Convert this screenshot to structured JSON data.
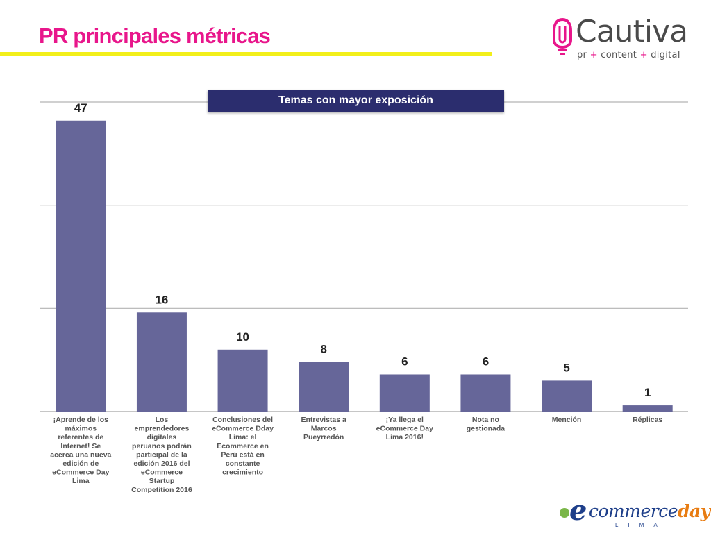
{
  "header": {
    "title": "PR principales métricas"
  },
  "logos": {
    "cautiva_name": "Cautiva",
    "cautiva_tag_pr": "pr",
    "cautiva_tag_plus": "+",
    "cautiva_tag_content": "content",
    "cautiva_tag_digital": "digital",
    "ecommerce_e": "e",
    "ecommerce_commerce": "commerce",
    "ecommerce_day": "day",
    "ecommerce_lima": "LIMA"
  },
  "colors": {
    "title": "#e8168b",
    "underline": "#f2ef1a",
    "bar": "#666699",
    "banner": "#2b2d6e",
    "grid": "#b3b3b3"
  },
  "chart_data": {
    "type": "bar",
    "title": "Temas con mayor exposición",
    "ylim": [
      0,
      50
    ],
    "grid": true,
    "categories": [
      "¡Aprende de los máximos referentes de Internet! Se acerca una nueva edición de eCommerce Day Lima",
      "Los emprendedores digitales peruanos podrán participal de la edición 2016 del eCommerce Startup Competition 2016",
      "Conclusiones del eCommerce Dday Lima: el Ecommerce en Perú está en constante crecimiento",
      "Entrevistas a Marcos Pueyrredón",
      "¡Ya llega el eCommerce Day Lima 2016!",
      "Nota no gestionada",
      "Mención",
      "Réplicas"
    ],
    "category_lines": [
      [
        "¡Aprende de los",
        "máximos",
        "referentes de",
        "Internet! Se",
        "acerca una nueva",
        "edición de",
        "eCommerce Day",
        "Lima"
      ],
      [
        "Los",
        "emprendedores",
        "digitales",
        "peruanos podrán",
        "participal de la",
        "edición 2016 del",
        "eCommerce",
        "Startup",
        "Competition 2016"
      ],
      [
        "Conclusiones del",
        "eCommerce Dday",
        "Lima: el",
        "Ecommerce en",
        "Perú está en",
        "constante",
        "crecimiento"
      ],
      [
        "Entrevistas a",
        "Marcos",
        "Pueyrredón"
      ],
      [
        "¡Ya llega el",
        "eCommerce Day",
        "Lima 2016!"
      ],
      [
        "Nota no",
        "gestionada"
      ],
      [
        "Mención"
      ],
      [
        "Réplicas"
      ]
    ],
    "values": [
      47,
      16,
      10,
      8,
      6,
      6,
      5,
      1
    ]
  }
}
